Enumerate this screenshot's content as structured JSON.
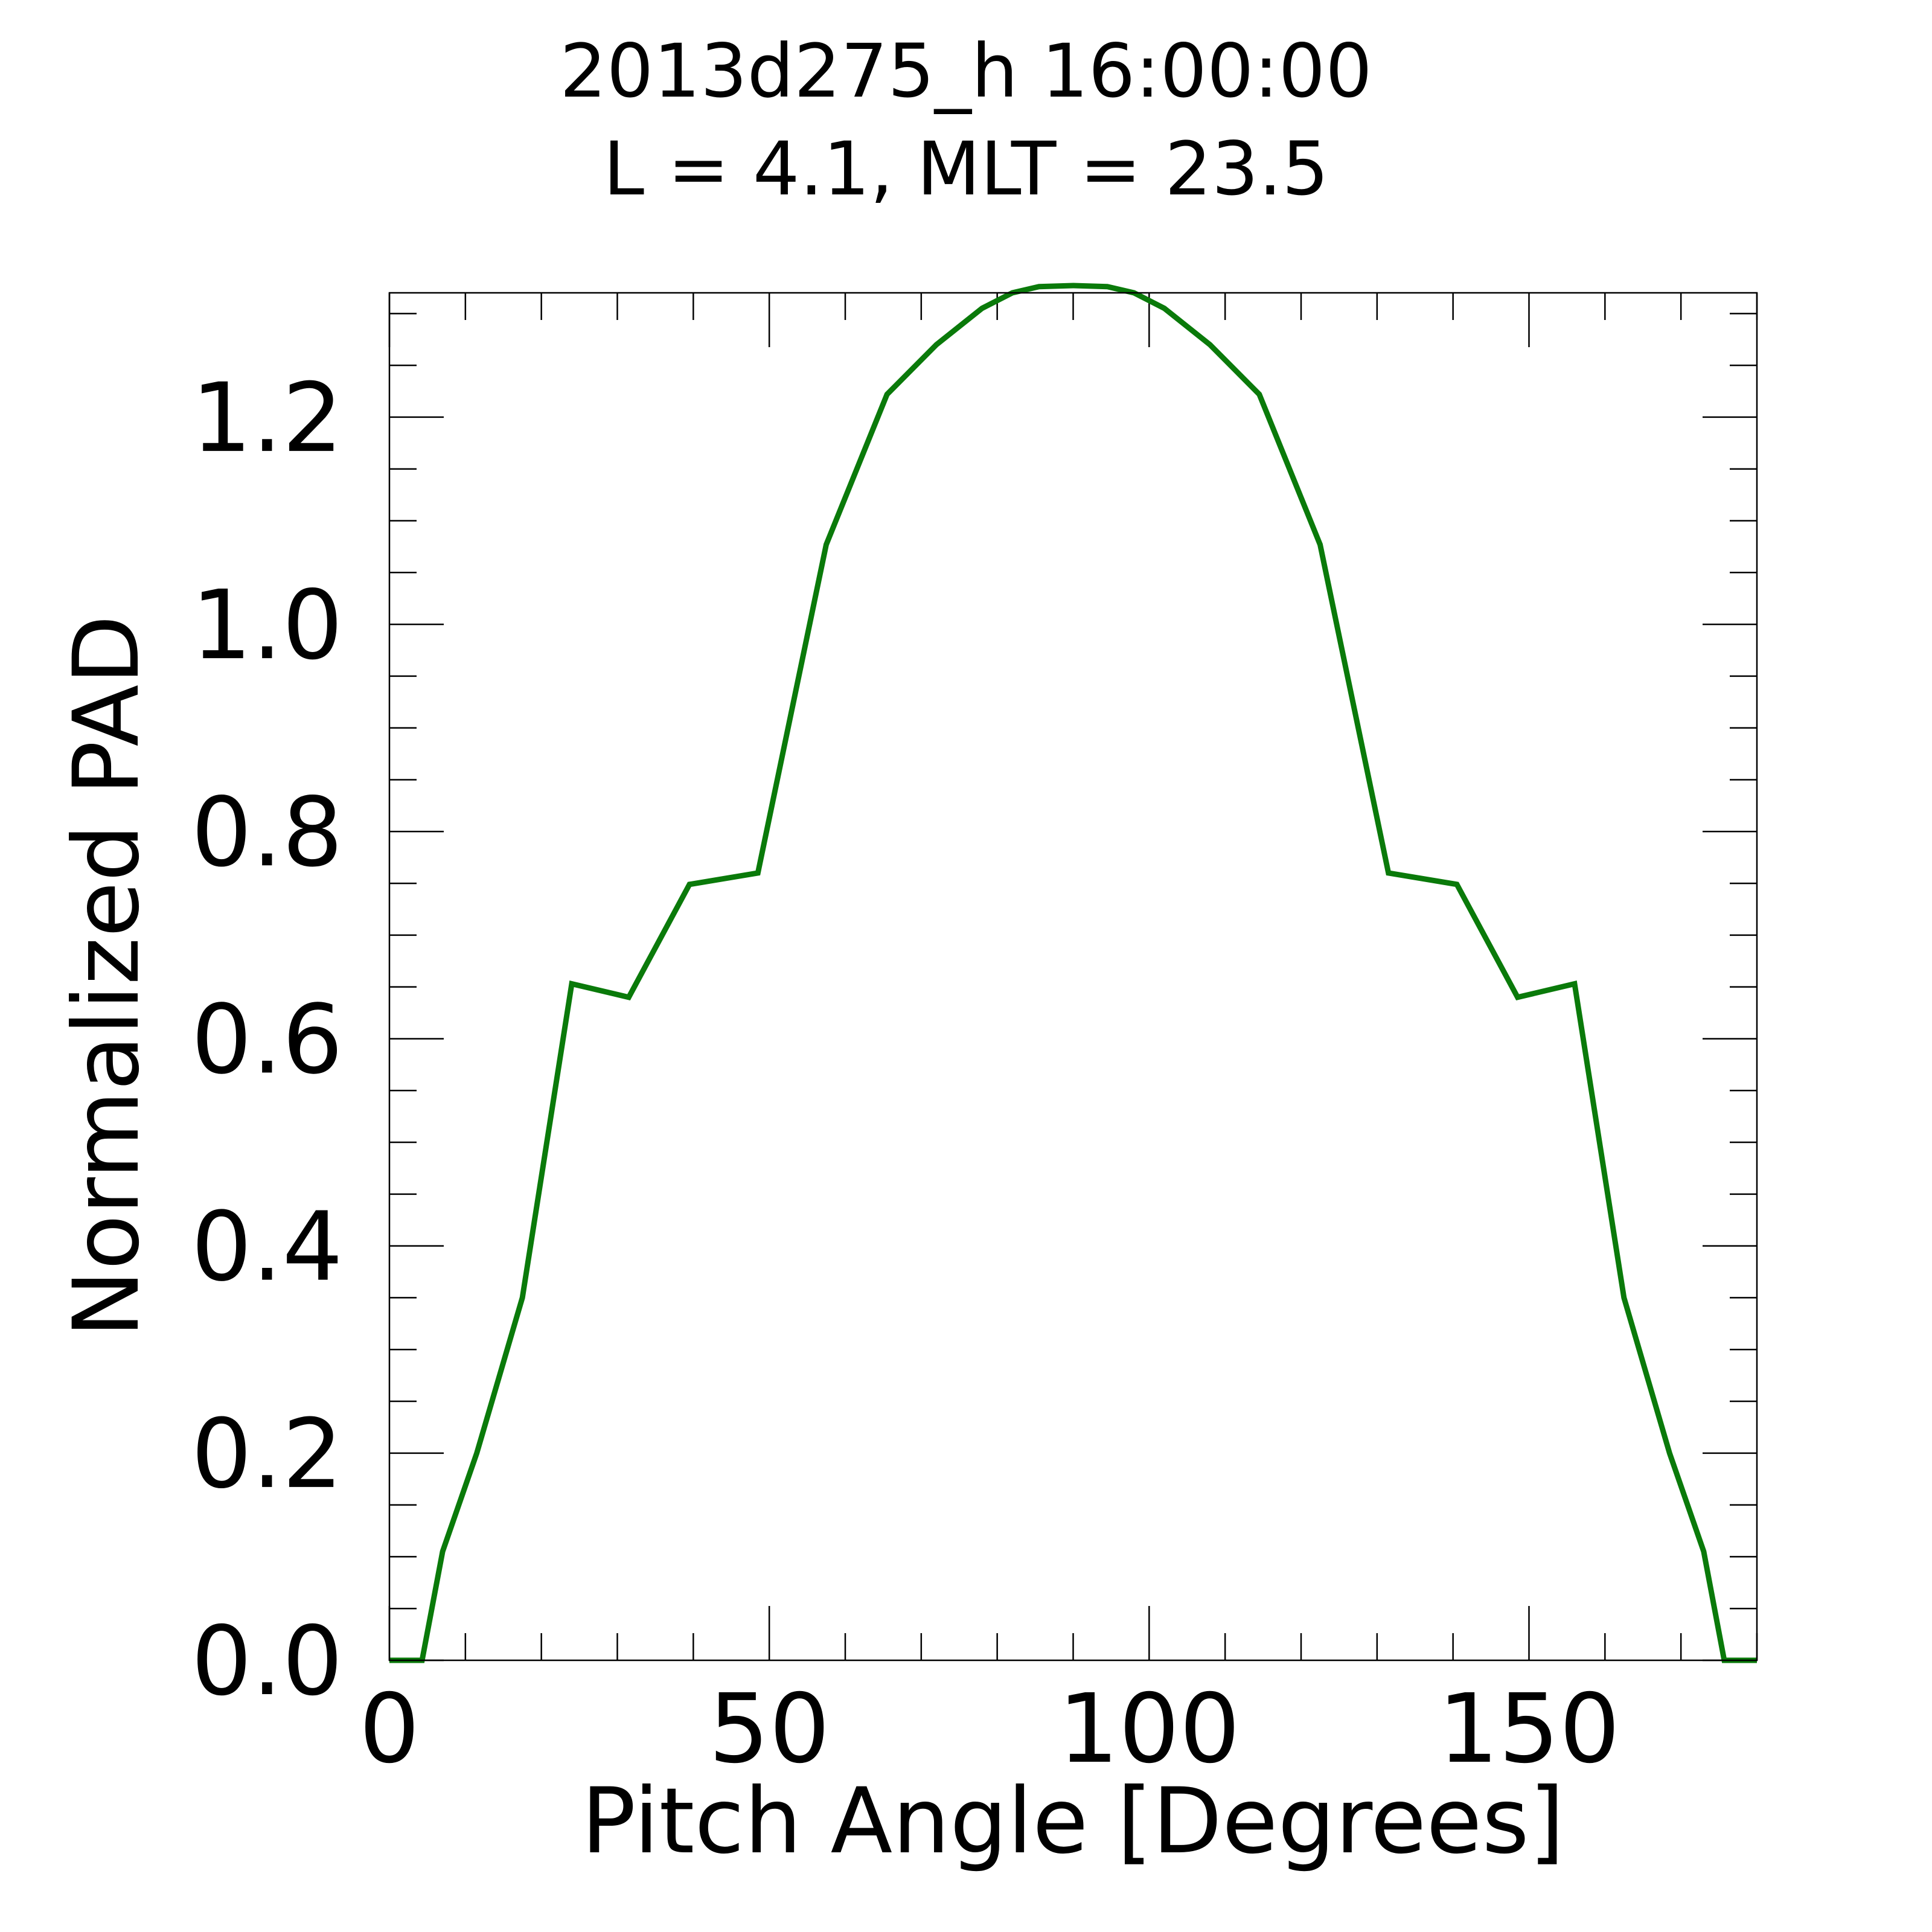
{
  "chart_data": {
    "type": "line",
    "title": [
      "2013d275_h  16:00:00",
      "L = 4.1, MLT = 23.5"
    ],
    "xlabel": "Pitch Angle [Degrees]",
    "ylabel": "Normalized PAD",
    "xlim": [
      0,
      180
    ],
    "ylim": [
      0,
      1.32
    ],
    "xticks": [
      0,
      50,
      100,
      150
    ],
    "xtick_labels": [
      "0",
      "50",
      "100",
      "150"
    ],
    "x_minor_step": 10,
    "yticks": [
      0.0,
      0.2,
      0.4,
      0.6,
      0.8,
      1.0,
      1.2
    ],
    "ytick_labels": [
      "0.0",
      "0.2",
      "0.4",
      "0.6",
      "0.8",
      "1.0",
      "1.2"
    ],
    "y_minor_step": 0.05,
    "grid": false,
    "legend": "none",
    "series": [
      {
        "color": "#0a7a0a",
        "x": [
          0,
          4.3,
          7,
          11.5,
          17.5,
          24,
          31.5,
          39.5,
          48.5,
          57.5,
          65.5,
          72,
          78,
          82,
          85.5,
          90,
          94.5,
          98,
          102,
          108,
          114.5,
          122.5,
          131.5,
          140.5,
          148.5,
          156,
          162.5,
          168.5,
          173,
          175.7,
          180
        ],
        "y": [
          0.0,
          0.0,
          0.105,
          0.2,
          0.35,
          0.653,
          0.64,
          0.749,
          0.76,
          1.077,
          1.222,
          1.27,
          1.305,
          1.32,
          1.326,
          1.327,
          1.326,
          1.32,
          1.305,
          1.27,
          1.222,
          1.077,
          0.76,
          0.749,
          0.64,
          0.653,
          0.35,
          0.2,
          0.105,
          0.0,
          0.0
        ]
      }
    ]
  }
}
